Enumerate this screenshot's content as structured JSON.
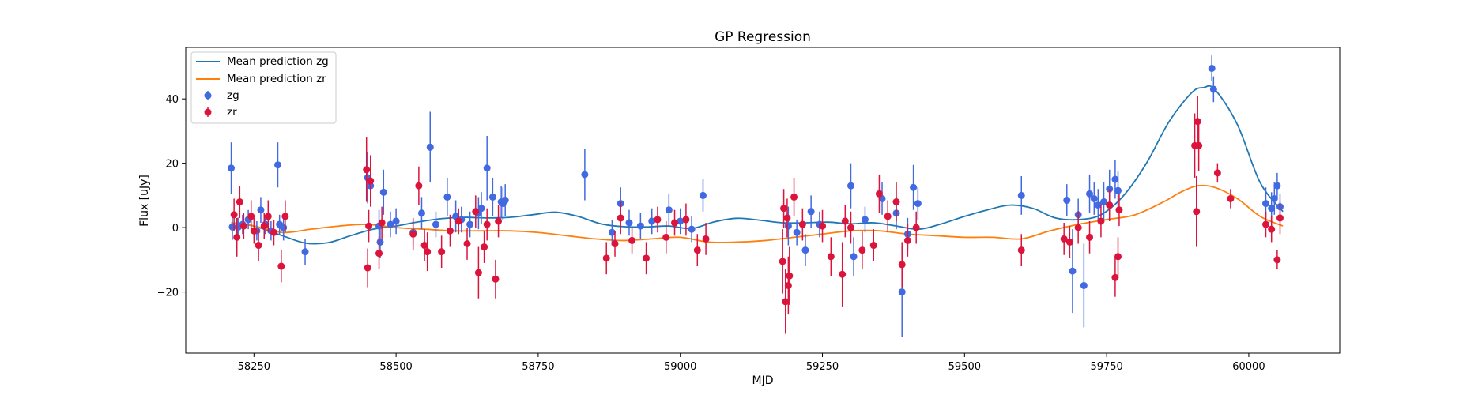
{
  "chart_data": {
    "type": "scatter",
    "title": "GP Regression",
    "xlabel": "MJD",
    "ylabel": "Flux [uJy]",
    "xlim": [
      58130,
      60160
    ],
    "ylim": [
      -39,
      56
    ],
    "xticks": [
      58250,
      58500,
      58750,
      59000,
      59250,
      59500,
      59750,
      60000
    ],
    "yticks": [
      -20,
      0,
      20,
      40
    ],
    "grid": false,
    "legend_position": "top-left",
    "colors": {
      "zg_line": "#1f77b4",
      "zr_line": "#ff7f0e",
      "zg_points": "#4169e1",
      "zr_points": "#dc143c"
    },
    "lines": [
      {
        "name": "Mean prediction zg",
        "color": "#1f77b4",
        "x": [
          58210,
          58250,
          58300,
          58340,
          58380,
          58420,
          58460,
          58500,
          58540,
          58580,
          58620,
          58660,
          58700,
          58740,
          58780,
          58820,
          58860,
          58900,
          58940,
          58980,
          59020,
          59060,
          59100,
          59140,
          59180,
          59220,
          59260,
          59300,
          59340,
          59380,
          59420,
          59460,
          59500,
          59540,
          59580,
          59620,
          59660,
          59700,
          59740,
          59780,
          59820,
          59860,
          59900,
          59920,
          59940,
          59980,
          60020,
          60060
        ],
        "y": [
          1.5,
          0.5,
          -2.5,
          -4.8,
          -4.7,
          -2.5,
          -0.5,
          0.5,
          1.8,
          2.8,
          3.2,
          3.0,
          3.2,
          4.0,
          4.8,
          3.5,
          1.2,
          0.3,
          0.2,
          0.5,
          -0.3,
          1.8,
          2.9,
          2.3,
          1.5,
          1.5,
          1.7,
          1.2,
          1.5,
          0.5,
          -0.5,
          1.2,
          3.5,
          5.5,
          7.0,
          6.0,
          3.0,
          2.5,
          4.0,
          10.0,
          20.0,
          33.0,
          42.0,
          43.5,
          43.0,
          32.0,
          14.0,
          5.0
        ]
      },
      {
        "name": "Mean prediction zr",
        "color": "#ff7f0e",
        "x": [
          58210,
          58250,
          58300,
          58350,
          58400,
          58450,
          58500,
          58550,
          58600,
          58650,
          58700,
          58750,
          58800,
          58850,
          58900,
          58950,
          59000,
          59050,
          59100,
          59150,
          59200,
          59250,
          59300,
          59350,
          59400,
          59450,
          59500,
          59550,
          59600,
          59650,
          59700,
          59750,
          59800,
          59850,
          59880,
          59910,
          59940,
          59980,
          60020,
          60060
        ],
        "y": [
          1.5,
          0.5,
          -1.5,
          -0.5,
          0.5,
          1.0,
          0.0,
          -0.5,
          -1.0,
          -1.0,
          -1.0,
          -1.5,
          -2.5,
          -3.5,
          -4.0,
          -3.5,
          -3.0,
          -4.5,
          -4.5,
          -4.0,
          -3.0,
          -2.0,
          -1.0,
          -1.0,
          -2.0,
          -2.5,
          -3.0,
          -3.0,
          -3.5,
          -1.0,
          1.0,
          2.5,
          4.0,
          8.0,
          11.0,
          13.0,
          12.5,
          9.0,
          3.5,
          0.5
        ]
      }
    ],
    "series": [
      {
        "name": "zg",
        "color": "#4169e1",
        "x": [
          58210,
          58212,
          58222,
          58230,
          58240,
          58255,
          58262,
          58270,
          58280,
          58292,
          58295,
          58302,
          58340,
          58450,
          58455,
          58470,
          58472,
          58478,
          58490,
          58500,
          58530,
          58545,
          58560,
          58570,
          58590,
          58605,
          58615,
          58630,
          58645,
          58650,
          58660,
          58670,
          58685,
          58688,
          58692,
          58832,
          58880,
          58895,
          58910,
          58930,
          58950,
          58980,
          59000,
          59020,
          59040,
          59190,
          59205,
          59220,
          59230,
          59245,
          59300,
          59305,
          59325,
          59355,
          59380,
          59390,
          59400,
          59410,
          59418,
          59600,
          59680,
          59690,
          59700,
          59710,
          59720,
          59728,
          59735,
          59745,
          59755,
          59765,
          59770,
          59935,
          59938,
          60030,
          60040,
          60045,
          60050,
          60055
        ],
        "y": [
          18.5,
          0.2,
          0.1,
          1.0,
          2.5,
          -1.0,
          5.5,
          1.0,
          -1.0,
          19.5,
          1.0,
          0.0,
          -7.5,
          15.5,
          13.0,
          0.5,
          -4.5,
          11.0,
          1.0,
          2.0,
          -1.5,
          4.5,
          25.0,
          1.0,
          9.5,
          3.5,
          2.5,
          1.0,
          4.5,
          6.0,
          18.5,
          9.5,
          8.0,
          7.5,
          8.5,
          16.5,
          -1.5,
          7.5,
          1.5,
          0.5,
          2.0,
          5.5,
          2.0,
          -0.5,
          10.0,
          0.5,
          -1.5,
          -7.0,
          5.0,
          1.0,
          13.0,
          -9.0,
          2.5,
          9.0,
          4.5,
          -20.0,
          -2.0,
          12.5,
          7.5,
          10.0,
          8.5,
          -13.5,
          4.0,
          -18.0,
          10.5,
          9.0,
          7.0,
          8.0,
          12.0,
          15.0,
          11.5,
          49.5,
          43.0,
          7.5,
          6.0,
          9.0,
          13.0,
          6.5
        ],
        "yerr": [
          8,
          4,
          3,
          3,
          3,
          3,
          4,
          3,
          3,
          7,
          3,
          4,
          4,
          8,
          6,
          5,
          5,
          7,
          4,
          4,
          4,
          5,
          11,
          4,
          6,
          5,
          4,
          4,
          5,
          5,
          10,
          6,
          5,
          5,
          5,
          8,
          4,
          5,
          4,
          4,
          4,
          5,
          4,
          4,
          5,
          6,
          4,
          5,
          5,
          4,
          7,
          6,
          4,
          5,
          5,
          14,
          5,
          7,
          5,
          6,
          5,
          13,
          5,
          13,
          6,
          5,
          5,
          6,
          6,
          6,
          6,
          4,
          4,
          5,
          5,
          5,
          4,
          4
        ]
      },
      {
        "name": "zr",
        "color": "#dc143c",
        "x": [
          58215,
          58220,
          58225,
          58232,
          58245,
          58250,
          58258,
          58268,
          58275,
          58285,
          58298,
          58305,
          58448,
          58450,
          58452,
          58455,
          58470,
          58475,
          58530,
          58540,
          58550,
          58555,
          58580,
          58595,
          58610,
          58625,
          58640,
          58645,
          58655,
          58660,
          58675,
          58680,
          58870,
          58885,
          58895,
          58915,
          58940,
          58960,
          58975,
          58990,
          59010,
          59030,
          59045,
          59180,
          59182,
          59185,
          59188,
          59190,
          59192,
          59200,
          59215,
          59250,
          59265,
          59285,
          59290,
          59300,
          59320,
          59340,
          59350,
          59365,
          59380,
          59390,
          59400,
          59415,
          59600,
          59675,
          59685,
          59700,
          59720,
          59740,
          59755,
          59765,
          59770,
          59772,
          59905,
          59908,
          59910,
          59912,
          59945,
          59968,
          60030,
          60040,
          60050,
          60055
        ],
        "y": [
          4.0,
          -3.0,
          8.0,
          0.5,
          3.5,
          -1.0,
          -5.5,
          0.5,
          3.5,
          -1.5,
          -12.0,
          3.5,
          18.0,
          -12.5,
          0.5,
          14.5,
          -8.0,
          1.5,
          -2.0,
          13.0,
          -5.5,
          -7.5,
          -7.5,
          -1.0,
          2.0,
          -5.0,
          5.0,
          -14.0,
          -6.0,
          1.0,
          -16.0,
          2.0,
          -9.5,
          -5.0,
          3.0,
          -4.0,
          -9.5,
          2.5,
          -3.0,
          1.5,
          2.5,
          -7.0,
          -3.5,
          -10.5,
          6.0,
          -23.0,
          3.0,
          -18.0,
          -15.0,
          9.5,
          1.0,
          0.5,
          -9.0,
          -14.5,
          2.0,
          0.0,
          -7.0,
          -5.5,
          10.5,
          3.5,
          8.0,
          -11.5,
          -4.0,
          0.0,
          -7.0,
          -3.5,
          -4.5,
          0.0,
          -3.0,
          2.0,
          7.0,
          -15.5,
          -9.0,
          5.5,
          25.5,
          5.0,
          33.0,
          25.5,
          17.0,
          9.0,
          1.0,
          -0.5,
          -10.0,
          3.0
        ],
        "yerr": [
          5,
          6,
          5,
          4,
          5,
          4,
          5,
          4,
          5,
          4,
          5,
          5,
          10,
          6,
          5,
          8,
          5,
          5,
          5,
          6,
          5,
          6,
          5,
          5,
          4,
          5,
          5,
          8,
          5,
          5,
          6,
          5,
          5,
          4,
          5,
          4,
          5,
          4,
          5,
          4,
          5,
          5,
          5,
          10,
          6,
          10,
          6,
          9,
          9,
          6,
          5,
          5,
          6,
          10,
          5,
          5,
          6,
          5,
          6,
          5,
          6,
          7,
          5,
          5,
          5,
          5,
          5,
          5,
          5,
          5,
          5,
          6,
          6,
          5,
          10,
          11,
          8,
          8,
          3,
          3,
          4,
          4,
          3,
          5
        ]
      }
    ]
  }
}
